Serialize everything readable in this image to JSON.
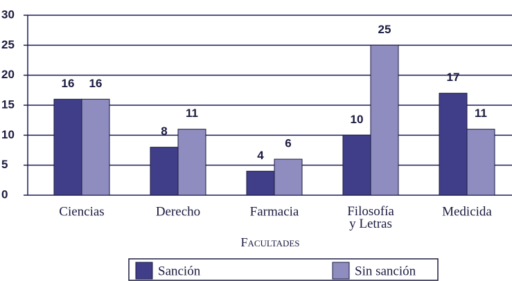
{
  "chart_data": {
    "type": "bar",
    "categories": [
      "Ciencias",
      "Derecho",
      "Farmacia",
      "Filosofía\ny Letras",
      "Medicida"
    ],
    "series": [
      {
        "name": "Sanción",
        "color": "#403e88",
        "values": [
          16,
          8,
          4,
          10,
          17
        ]
      },
      {
        "name": "Sin sanción",
        "color": "#8f8cc0",
        "values": [
          16,
          11,
          6,
          25,
          11
        ]
      }
    ],
    "xlabel": "Facultades",
    "ylim": [
      0,
      30
    ],
    "yticks": [
      0,
      5,
      10,
      15,
      20,
      25,
      30
    ],
    "grid": true,
    "legend": "bottom"
  }
}
